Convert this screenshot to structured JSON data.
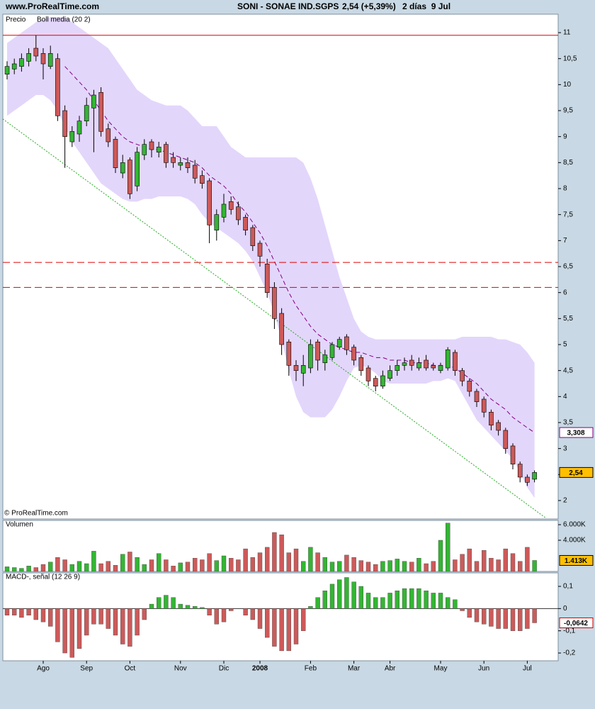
{
  "header": {
    "site": "www.ProRealTime.com",
    "symbol": "SONI - SONAE IND.SGPS",
    "quote": "2,54 (+5,39%)",
    "period": "2 días  9 Jul"
  },
  "chart_data": [
    {
      "type": "candlestick",
      "title": "Precio",
      "watermark": "© ProRealTime.com",
      "up_color": "#33b533",
      "down_color": "#cc5a5a",
      "open": [
        10.2,
        10.3,
        10.35,
        10.45,
        10.7,
        10.6,
        10.35,
        10.5,
        9.5,
        8.9,
        9.05,
        9.3,
        9.55,
        9.85,
        9.15,
        8.95,
        8.3,
        8.55,
        8.05,
        8.65,
        8.9,
        8.7,
        8.85,
        8.6,
        8.45,
        8.5,
        8.45,
        8.25,
        8.15,
        7.2,
        7.45,
        7.75,
        7.65,
        7.45,
        7.25,
        6.95,
        6.55,
        6.1,
        5.6,
        5.05,
        4.6,
        4.45,
        4.55,
        5.05,
        4.65,
        4.75,
        4.95,
        5.15,
        4.95,
        4.75,
        4.55,
        4.35,
        4.2,
        4.35,
        4.5,
        4.6,
        4.7,
        4.55,
        4.7,
        4.6,
        4.5,
        4.55,
        4.85,
        4.5,
        4.3,
        4.1,
        3.95,
        3.7,
        3.5,
        3.35,
        3.05,
        2.7,
        2.45,
        2.41
      ],
      "high": [
        10.45,
        10.5,
        10.6,
        10.7,
        10.95,
        10.7,
        10.75,
        10.6,
        9.6,
        9.2,
        9.4,
        9.75,
        9.9,
        9.95,
        9.25,
        9.0,
        8.65,
        8.6,
        8.8,
        8.95,
        8.95,
        8.9,
        8.9,
        8.7,
        8.6,
        8.6,
        8.55,
        8.35,
        8.2,
        7.6,
        7.9,
        7.85,
        7.75,
        7.5,
        7.3,
        7.0,
        6.65,
        6.2,
        5.7,
        5.1,
        4.7,
        4.8,
        5.1,
        5.1,
        4.9,
        5.05,
        5.15,
        5.2,
        5.0,
        4.8,
        4.6,
        4.4,
        4.5,
        4.6,
        4.7,
        4.75,
        4.8,
        4.75,
        4.8,
        4.65,
        4.65,
        4.95,
        4.9,
        4.55,
        4.35,
        4.15,
        4.0,
        3.75,
        3.55,
        3.4,
        3.1,
        2.75,
        2.5,
        2.58
      ],
      "low": [
        10.1,
        10.2,
        10.25,
        10.35,
        10.45,
        10.1,
        10.3,
        9.3,
        8.4,
        8.8,
        8.9,
        9.2,
        8.7,
        9.0,
        8.8,
        8.3,
        8.2,
        7.8,
        7.95,
        8.55,
        8.6,
        8.6,
        8.4,
        8.4,
        8.35,
        8.3,
        8.1,
        8.0,
        6.95,
        7.0,
        7.35,
        7.5,
        7.3,
        7.1,
        6.8,
        6.5,
        5.9,
        5.3,
        4.8,
        4.4,
        4.3,
        4.2,
        4.45,
        4.5,
        4.5,
        4.7,
        4.9,
        4.8,
        4.6,
        4.4,
        4.2,
        4.1,
        4.15,
        4.3,
        4.4,
        4.5,
        4.5,
        4.5,
        4.5,
        4.5,
        4.45,
        4.5,
        4.4,
        4.2,
        4.0,
        3.8,
        3.6,
        3.35,
        3.25,
        2.9,
        2.6,
        2.35,
        2.28,
        2.35
      ],
      "close": [
        10.35,
        10.4,
        10.5,
        10.6,
        10.55,
        10.4,
        10.6,
        9.4,
        9.0,
        9.1,
        9.3,
        9.6,
        9.8,
        9.1,
        8.9,
        8.4,
        8.5,
        7.9,
        8.7,
        8.85,
        8.75,
        8.8,
        8.5,
        8.5,
        8.5,
        8.4,
        8.2,
        8.1,
        7.3,
        7.5,
        7.7,
        7.6,
        7.4,
        7.2,
        6.9,
        6.7,
        6.0,
        5.5,
        5.0,
        4.6,
        4.5,
        4.6,
        5.0,
        4.7,
        4.8,
        5.0,
        5.1,
        4.9,
        4.7,
        4.5,
        4.3,
        4.2,
        4.4,
        4.5,
        4.6,
        4.65,
        4.6,
        4.65,
        4.55,
        4.55,
        4.6,
        4.9,
        4.5,
        4.3,
        4.1,
        3.9,
        3.7,
        3.45,
        3.35,
        3.0,
        2.7,
        2.45,
        2.35,
        2.54
      ],
      "bands": {
        "name": "Boll media (20 2)",
        "color": "#800080",
        "fill": "#e3d6fb",
        "upper": [
          10.8,
          10.9,
          11.0,
          11.1,
          11.2,
          11.25,
          11.3,
          11.3,
          11.3,
          11.2,
          11.1,
          11.0,
          10.9,
          10.8,
          10.7,
          10.5,
          10.3,
          10.1,
          9.9,
          9.8,
          9.7,
          9.65,
          9.6,
          9.6,
          9.6,
          9.5,
          9.35,
          9.2,
          9.2,
          9.2,
          9.0,
          8.8,
          8.7,
          8.6,
          8.6,
          8.6,
          8.6,
          8.6,
          8.6,
          8.6,
          8.6,
          8.5,
          8.2,
          7.8,
          7.3,
          6.8,
          6.3,
          5.9,
          5.5,
          5.25,
          5.15,
          5.1,
          5.1,
          5.1,
          5.1,
          5.1,
          5.1,
          5.1,
          5.1,
          5.1,
          5.1,
          5.1,
          5.1,
          5.15,
          5.15,
          5.15,
          5.15,
          5.15,
          5.1,
          5.1,
          5.05,
          5.0,
          4.85,
          4.65
        ],
        "middle": [
          null,
          null,
          null,
          null,
          null,
          null,
          null,
          null,
          10.35,
          10.2,
          10.05,
          9.9,
          9.7,
          9.5,
          9.3,
          9.15,
          9.0,
          8.9,
          8.85,
          8.8,
          8.75,
          8.75,
          8.7,
          8.65,
          8.6,
          8.55,
          8.5,
          8.4,
          8.25,
          8.15,
          8.05,
          7.9,
          7.7,
          7.55,
          7.35,
          7.15,
          6.9,
          6.6,
          6.3,
          6.0,
          5.75,
          5.55,
          5.35,
          5.2,
          5.1,
          5.0,
          4.95,
          4.9,
          4.85,
          4.85,
          4.8,
          4.75,
          4.75,
          4.7,
          4.7,
          4.7,
          4.65,
          4.65,
          4.65,
          4.6,
          4.6,
          4.6,
          4.55,
          4.45,
          4.35,
          4.25,
          4.1,
          3.95,
          3.85,
          3.75,
          3.6,
          3.5,
          3.4,
          3.308
        ],
        "lower": [
          9.4,
          9.5,
          9.6,
          9.7,
          9.8,
          9.8,
          9.7,
          9.5,
          9.2,
          8.9,
          8.7,
          8.5,
          8.3,
          8.1,
          8.0,
          7.9,
          7.8,
          7.75,
          7.75,
          7.8,
          7.8,
          7.85,
          7.85,
          7.85,
          7.85,
          7.8,
          7.7,
          7.5,
          7.35,
          7.25,
          7.15,
          7.05,
          6.95,
          6.8,
          6.6,
          6.3,
          6.0,
          5.6,
          5.1,
          4.5,
          4.0,
          3.7,
          3.6,
          3.6,
          3.6,
          3.75,
          4.0,
          4.3,
          4.55,
          4.6,
          4.55,
          4.45,
          4.3,
          4.25,
          4.25,
          4.25,
          4.25,
          4.25,
          4.25,
          4.3,
          4.3,
          4.35,
          4.3,
          4.05,
          3.8,
          3.55,
          3.4,
          3.25,
          3.1,
          2.95,
          2.8,
          2.55,
          2.25,
          2.05
        ]
      },
      "hlines": [
        {
          "value": 10.95,
          "color": "#dd0000",
          "style": "solid"
        },
        {
          "value": 6.58,
          "color": "#dd0000",
          "style": "dashed"
        },
        {
          "value": 6.1,
          "color": "#dd0000",
          "style": "dashed"
        }
      ],
      "trendline": {
        "from": [
          -0.6,
          9.34
        ],
        "to": [
          74.5,
          1.67
        ],
        "color": "#22aa22"
      },
      "markers": [
        {
          "value": 3.308,
          "label": "3,308",
          "color": "#800080",
          "fill": "#ffffff"
        },
        {
          "value": 2.54,
          "label": "2,54",
          "color": "#000000",
          "fill": "#ffc000"
        }
      ],
      "ylim": [
        1.645,
        11.355
      ],
      "yticks": [
        2,
        {
          "value": 2.5,
          "label": "2,5"
        },
        3,
        {
          "value": 3.5,
          "label": "3,5"
        },
        4,
        {
          "value": 4.5,
          "label": "4,5"
        },
        5,
        {
          "value": 5.5,
          "label": "5,5"
        },
        6,
        {
          "value": 6.5,
          "label": "6,5"
        },
        7,
        {
          "value": 7.5,
          "label": "7,5"
        },
        8,
        {
          "value": 8.5,
          "label": "8,5"
        },
        9,
        {
          "value": 9.5,
          "label": "9,5"
        },
        10,
        {
          "value": 10.5,
          "label": "10,5"
        },
        11
      ]
    },
    {
      "type": "bar",
      "title": "Volumen",
      "title_color": "#22aa22",
      "color_by": "candle",
      "up_color": "#33b533",
      "down_color": "#cc5a5a",
      "values": [
        600,
        500,
        400,
        700,
        500,
        900,
        1200,
        1800,
        1500,
        900,
        1300,
        1000,
        2600,
        1000,
        1300,
        800,
        2200,
        2500,
        1800,
        900,
        1500,
        2300,
        1500,
        700,
        1100,
        1200,
        1700,
        1500,
        2300,
        1400,
        2000,
        1700,
        1500,
        2900,
        1800,
        2400,
        3100,
        5000,
        4700,
        2400,
        2900,
        1300,
        3100,
        2400,
        1800,
        1200,
        1300,
        2100,
        1800,
        1400,
        1200,
        900,
        1300,
        1400,
        1600,
        1300,
        1200,
        1700,
        1000,
        1300,
        4000,
        6200,
        1500,
        2200,
        2900,
        1300,
        2700,
        1700,
        1500,
        2900,
        2300,
        1300,
        3100,
        1413
      ],
      "markers": [
        {
          "value": 1413,
          "label": "1.413K",
          "color": "#000000",
          "fill": "#ffc000"
        }
      ],
      "ylim": [
        0,
        6545
      ],
      "yticks": [
        {
          "value": 4000,
          "label": "4.000K"
        },
        {
          "value": 6000,
          "label": "6.000K"
        }
      ]
    },
    {
      "type": "bar",
      "title": "MACD-, señal (12 26 9)",
      "title_color": "#cc2222",
      "color_by": "sign",
      "up_color": "#33b533",
      "down_color": "#cc5a5a",
      "values": [
        -0.03,
        -0.03,
        -0.04,
        -0.03,
        -0.05,
        -0.06,
        -0.08,
        -0.15,
        -0.2,
        -0.22,
        -0.18,
        -0.12,
        -0.07,
        -0.07,
        -0.09,
        -0.12,
        -0.16,
        -0.17,
        -0.12,
        -0.05,
        0.02,
        0.05,
        0.06,
        0.05,
        0.02,
        0.015,
        0.01,
        0.005,
        -0.03,
        -0.07,
        -0.06,
        -0.01,
        0,
        -0.03,
        -0.05,
        -0.09,
        -0.13,
        -0.17,
        -0.19,
        -0.19,
        -0.16,
        -0.1,
        0.01,
        0.05,
        0.08,
        0.11,
        0.13,
        0.14,
        0.12,
        0.1,
        0.07,
        0.05,
        0.05,
        0.07,
        0.08,
        0.09,
        0.09,
        0.09,
        0.08,
        0.07,
        0.07,
        0.05,
        0.04,
        -0.01,
        -0.04,
        -0.06,
        -0.07,
        -0.08,
        -0.09,
        -0.09,
        -0.1,
        -0.1,
        -0.09,
        -0.0642
      ],
      "categories": [
        null,
        null,
        null,
        null,
        null,
        "Ago",
        null,
        null,
        null,
        null,
        null,
        "Sep",
        null,
        null,
        null,
        null,
        null,
        "Oct",
        null,
        null,
        null,
        null,
        null,
        null,
        "Nov",
        null,
        null,
        null,
        null,
        null,
        "Dic",
        null,
        null,
        null,
        null,
        "2008",
        null,
        null,
        null,
        null,
        null,
        null,
        "Feb",
        null,
        null,
        null,
        null,
        null,
        "Mar",
        null,
        null,
        null,
        null,
        "Abr",
        null,
        null,
        null,
        null,
        null,
        null,
        "May",
        null,
        null,
        null,
        null,
        null,
        "Jun",
        null,
        null,
        null,
        null,
        null,
        "Jul",
        null
      ],
      "markers": [
        {
          "value": -0.0642,
          "label": "-0,0642",
          "color": "#cc0000",
          "fill": "#ffffff"
        }
      ],
      "zero_line": true,
      "ylim": [
        -0.235,
        0.1607
      ],
      "yticks": [
        {
          "value": -0.2,
          "label": "-0,2"
        },
        {
          "value": -0.1,
          "label": "-0,1"
        },
        0,
        {
          "value": 0.1,
          "label": "0,1"
        }
      ]
    }
  ]
}
